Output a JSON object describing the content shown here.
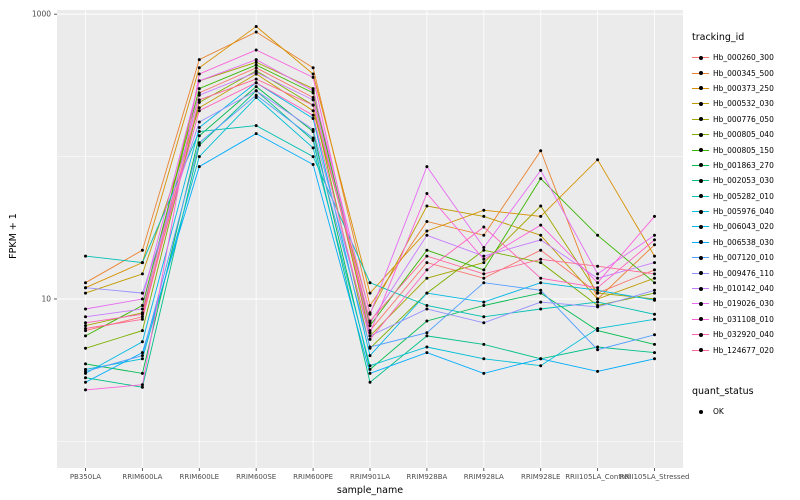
{
  "figure": {
    "y_axis_label": "FPKM + 1",
    "x_axis_label": "sample_name"
  },
  "legend": {
    "tracking_title": "tracking_id",
    "quant_title": "quant_status",
    "quant_items": [
      {
        "label": "OK"
      }
    ]
  },
  "chart_data": {
    "type": "line",
    "title": "",
    "xlabel": "sample_name",
    "ylabel": "FPKM + 1",
    "y_scale": "log10",
    "ylim": [
      0.65,
      1070
    ],
    "y_ticks": [
      {
        "value": 10,
        "label": "10"
      },
      {
        "value": 1000,
        "label": "1000"
      }
    ],
    "y_minor_ticks": [
      1,
      100
    ],
    "legend_position": "right",
    "panel_background": "#EBEBEB",
    "grid_color": "#FFFFFF",
    "point_color": "#000000",
    "tick_label_color": "#4D4D4D",
    "categories": [
      "PB350LA",
      "RRIM600LA",
      "RRIM600LE",
      "RRIM600SE",
      "RRIM600PE",
      "RRIM901LA",
      "RRIM928BA",
      "RRIM928LA",
      "RRIM928LE",
      "RRII105LA_Control",
      "RRII105LA_Stressed"
    ],
    "series": [
      {
        "name": "Hb_000260_300",
        "color": "#F8766D",
        "values": [
          6,
          7.5,
          280,
          420,
          260,
          6,
          18,
          14,
          22,
          11,
          16
        ]
      },
      {
        "name": "Hb_000345_500",
        "color": "#EA8331",
        "values": [
          13,
          22,
          480,
          750,
          420,
          9,
          35,
          28,
          110,
          10,
          24
        ]
      },
      {
        "name": "Hb_000373_250",
        "color": "#D89000",
        "values": [
          12,
          18,
          420,
          820,
          380,
          11,
          30,
          42,
          38,
          95,
          20
        ]
      },
      {
        "name": "Hb_000532_030",
        "color": "#C09B00",
        "values": [
          11,
          15,
          220,
          380,
          210,
          8,
          45,
          38,
          28,
          10,
          14
        ]
      },
      {
        "name": "Hb_000776_050",
        "color": "#A3A500",
        "values": [
          6.5,
          8,
          340,
          460,
          300,
          5.5,
          14,
          18,
          45,
          11,
          10
        ]
      },
      {
        "name": "Hb_000805_040",
        "color": "#7CAE00",
        "values": [
          4.5,
          6,
          240,
          400,
          230,
          4.5,
          11,
          22,
          18,
          9,
          11
        ]
      },
      {
        "name": "Hb_000805_150",
        "color": "#39B600",
        "values": [
          5.5,
          9,
          300,
          440,
          280,
          6.5,
          22,
          16,
          70,
          28,
          13
        ]
      },
      {
        "name": "Hb_001863_270",
        "color": "#00BB4E",
        "values": [
          3.5,
          3,
          140,
          310,
          150,
          3.2,
          7,
          9,
          11,
          6,
          4.8
        ]
      },
      {
        "name": "Hb_002053_030",
        "color": "#00C087",
        "values": [
          2.8,
          2.4,
          120,
          290,
          130,
          2.6,
          5.5,
          4.8,
          3.8,
          4.6,
          4.2
        ]
      },
      {
        "name": "Hb_005282_010",
        "color": "#00C0B2",
        "values": [
          20,
          18,
          150,
          165,
          100,
          13,
          9,
          7.5,
          8.5,
          9.5,
          7.8
        ]
      },
      {
        "name": "Hb_005976_040",
        "color": "#00BFD6",
        "values": [
          3.2,
          3.8,
          100,
          260,
          115,
          3.4,
          4.6,
          3.8,
          3.4,
          6.2,
          7.2
        ]
      },
      {
        "name": "Hb_006043_020",
        "color": "#00B8E5",
        "values": [
          3.0,
          5,
          160,
          330,
          185,
          4.0,
          11,
          9.5,
          13,
          11.5,
          9.8
        ]
      },
      {
        "name": "Hb_006538_030",
        "color": "#00ACFC",
        "values": [
          2.6,
          4.2,
          85,
          145,
          88,
          3.0,
          4.2,
          3.0,
          3.8,
          3.1,
          3.8
        ]
      },
      {
        "name": "Hb_007120_010",
        "color": "#529EFF",
        "values": [
          3.1,
          4.0,
          125,
          270,
          135,
          4.6,
          5.8,
          13,
          11.5,
          4.4,
          5.6
        ]
      },
      {
        "name": "Hb_009476_110",
        "color": "#9590FF",
        "values": [
          12,
          11,
          175,
          290,
          155,
          5.5,
          8.5,
          6.8,
          9.5,
          8.8,
          11.5
        ]
      },
      {
        "name": "Hb_010142_040",
        "color": "#C77CFF",
        "values": [
          7.5,
          8.5,
          270,
          390,
          250,
          6.8,
          28,
          20,
          26,
          14,
          18
        ]
      },
      {
        "name": "Hb_019026_030",
        "color": "#E76BF3",
        "values": [
          8.5,
          10,
          340,
          480,
          290,
          7.8,
          85,
          23,
          80,
          15,
          28
        ]
      },
      {
        "name": "Hb_031108_010",
        "color": "#FA62DB",
        "values": [
          2.3,
          2.5,
          380,
          560,
          360,
          5.8,
          55,
          19,
          33,
          13,
          38
        ]
      },
      {
        "name": "Hb_032920_040",
        "color": "#FF62BC",
        "values": [
          6.8,
          7.8,
          210,
          330,
          195,
          5.2,
          16,
          32,
          14,
          12,
          26
        ]
      },
      {
        "name": "Hb_124677_020",
        "color": "#FF6A98",
        "values": [
          6.2,
          7.2,
          250,
          350,
          230,
          7.0,
          20,
          15,
          19,
          17,
          15
        ]
      }
    ]
  }
}
